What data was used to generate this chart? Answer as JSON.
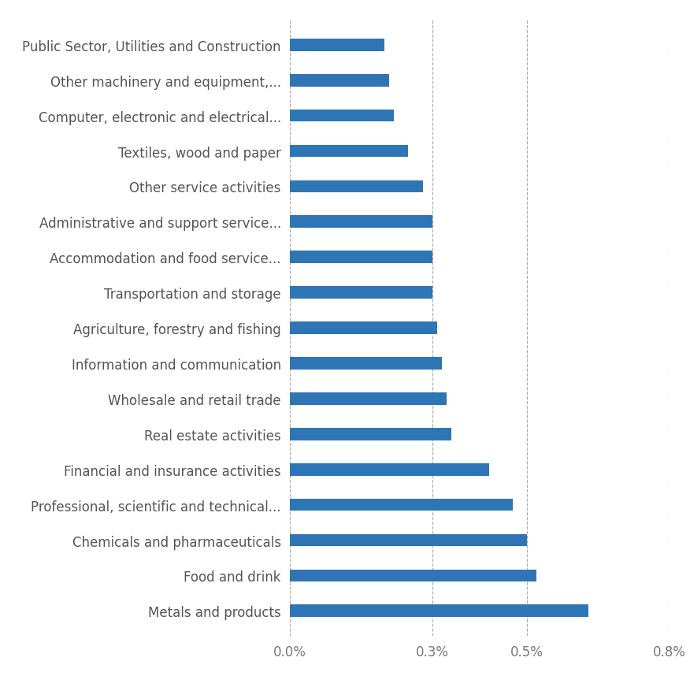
{
  "categories": [
    "Metals and products",
    "Food and drink",
    "Chemicals and pharmaceuticals",
    "Professional, scientific and technical...",
    "Financial and insurance activities",
    "Real estate activities",
    "Wholesale and retail trade",
    "Information and communication",
    "Agriculture, forestry and fishing",
    "Transportation and storage",
    "Accommodation and food service...",
    "Administrative and support service...",
    "Other service activities",
    "Textiles, wood and paper",
    "Computer, electronic and electrical...",
    "Other machinery and equipment,...",
    "Public Sector, Utilities and Construction"
  ],
  "values": [
    0.0063,
    0.0052,
    0.005,
    0.0047,
    0.0042,
    0.0034,
    0.0033,
    0.0032,
    0.0031,
    0.003,
    0.003,
    0.003,
    0.0028,
    0.0025,
    0.0022,
    0.0021,
    0.002
  ],
  "bar_color": "#2E75B6",
  "background_color": "#ffffff",
  "xlim": [
    0,
    0.008
  ],
  "xticks": [
    0.0,
    0.003,
    0.005,
    0.008
  ],
  "xtick_labels": [
    "0.0%",
    "0.3%",
    "0.5%",
    "0.8%"
  ],
  "grid_color": "#aaaaaa",
  "label_fontsize": 12,
  "tick_fontsize": 12,
  "bar_height": 0.35
}
